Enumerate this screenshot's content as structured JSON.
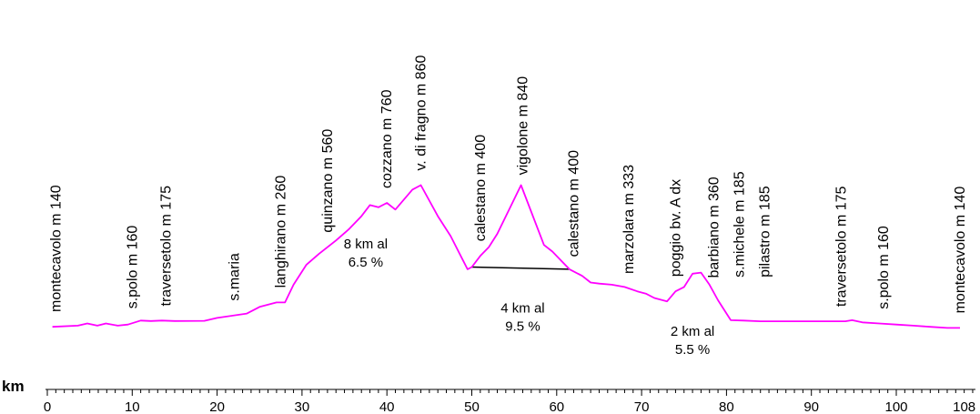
{
  "chart_data": {
    "type": "line",
    "title": "",
    "xlabel": "km",
    "ylabel": "",
    "xlim": [
      0,
      108
    ],
    "grid": false,
    "line_color": "#ff00ff",
    "x_ticks": [
      "0",
      "10",
      "20",
      "30",
      "40",
      "50",
      "60",
      "70",
      "80",
      "90",
      "100",
      "108"
    ],
    "x_tick_values": [
      0,
      10,
      20,
      30,
      40,
      50,
      60,
      70,
      80,
      90,
      100,
      108
    ],
    "x": [
      0.6,
      3.6,
      4.7,
      5.9,
      6.9,
      8.3,
      9.5,
      11.0,
      12.2,
      13.5,
      15.0,
      18.5,
      20.0,
      23.5,
      25.0,
      27.0,
      28.0,
      29.0,
      30.5,
      32.0,
      34.0,
      35.5,
      37.0,
      38.0,
      39.0,
      40.0,
      41.0,
      43.0,
      44.0,
      46.0,
      47.5,
      49.5,
      50.0,
      51.0,
      52.0,
      53.0,
      55.8,
      58.5,
      59.5,
      61.5,
      63.0,
      64.0,
      65.0,
      66.5,
      68.0,
      69.5,
      70.5,
      71.5,
      73.0,
      74.0,
      75.0,
      76.0,
      77.0,
      78.0,
      79.0,
      80.5,
      82.0,
      84.0,
      94.0,
      94.8,
      96.0,
      98.0,
      100.0,
      102.0,
      104.0,
      106.0,
      107.5
    ],
    "y": [
      140,
      145,
      155,
      145,
      155,
      145,
      150,
      168,
      166,
      168,
      166,
      167,
      180,
      200,
      230,
      250,
      250,
      330,
      420,
      470,
      530,
      580,
      640,
      690,
      680,
      700,
      670,
      760,
      780,
      640,
      550,
      400,
      410,
      460,
      500,
      560,
      780,
      510,
      480,
      400,
      370,
      340,
      335,
      330,
      320,
      300,
      290,
      270,
      255,
      300,
      320,
      380,
      385,
      330,
      260,
      170,
      168,
      165,
      165,
      170,
      160,
      155,
      150,
      145,
      140,
      135,
      135
    ],
    "places": [
      {
        "km": 1.0,
        "label": "montecavolo m 140"
      },
      {
        "km": 10.0,
        "label": "s.polo  m  160"
      },
      {
        "km": 14.0,
        "label": "traversetolo  m  175"
      },
      {
        "km": 22.0,
        "label": "s.maria"
      },
      {
        "km": 27.5,
        "label": "langhirano  m  260"
      },
      {
        "km": 33.0,
        "label": "quinzano m 560"
      },
      {
        "km": 40.0,
        "label": "cozzano  m  760"
      },
      {
        "km": 44.0,
        "label": "v. di fragno m 860"
      },
      {
        "km": 51.0,
        "label": "calestano m 400"
      },
      {
        "km": 56.0,
        "label": "vigolone m 840"
      },
      {
        "km": 62.0,
        "label": "calestano m 400"
      },
      {
        "km": 68.5,
        "label": "marzolara m  333"
      },
      {
        "km": 74.0,
        "label": "poggio bv. A  dx"
      },
      {
        "km": 78.5,
        "label": "barbiano m  360"
      },
      {
        "km": 81.5,
        "label": "s.michele m 185"
      },
      {
        "km": 84.5,
        "label": "pilastro m 185"
      },
      {
        "km": 93.5,
        "label": "traversetolo  m  175"
      },
      {
        "km": 98.5,
        "label": "s.polo  m  160"
      },
      {
        "km": 107.5,
        "label": "montecavolo  m  140"
      }
    ],
    "annotations": [
      {
        "line1": "8 km al",
        "line2": "6.5 %",
        "km": 37.5,
        "alt": 495
      },
      {
        "line1": "4 km al",
        "line2": "9.5 %",
        "km": 56.0,
        "alt": 205
      },
      {
        "line1": "2 km al",
        "line2": "5.5 %",
        "km": 76.0,
        "alt": 100
      }
    ],
    "chord": {
      "from_km": 50.0,
      "from_alt": 410,
      "to_km": 61.5,
      "to_alt": 400
    }
  }
}
